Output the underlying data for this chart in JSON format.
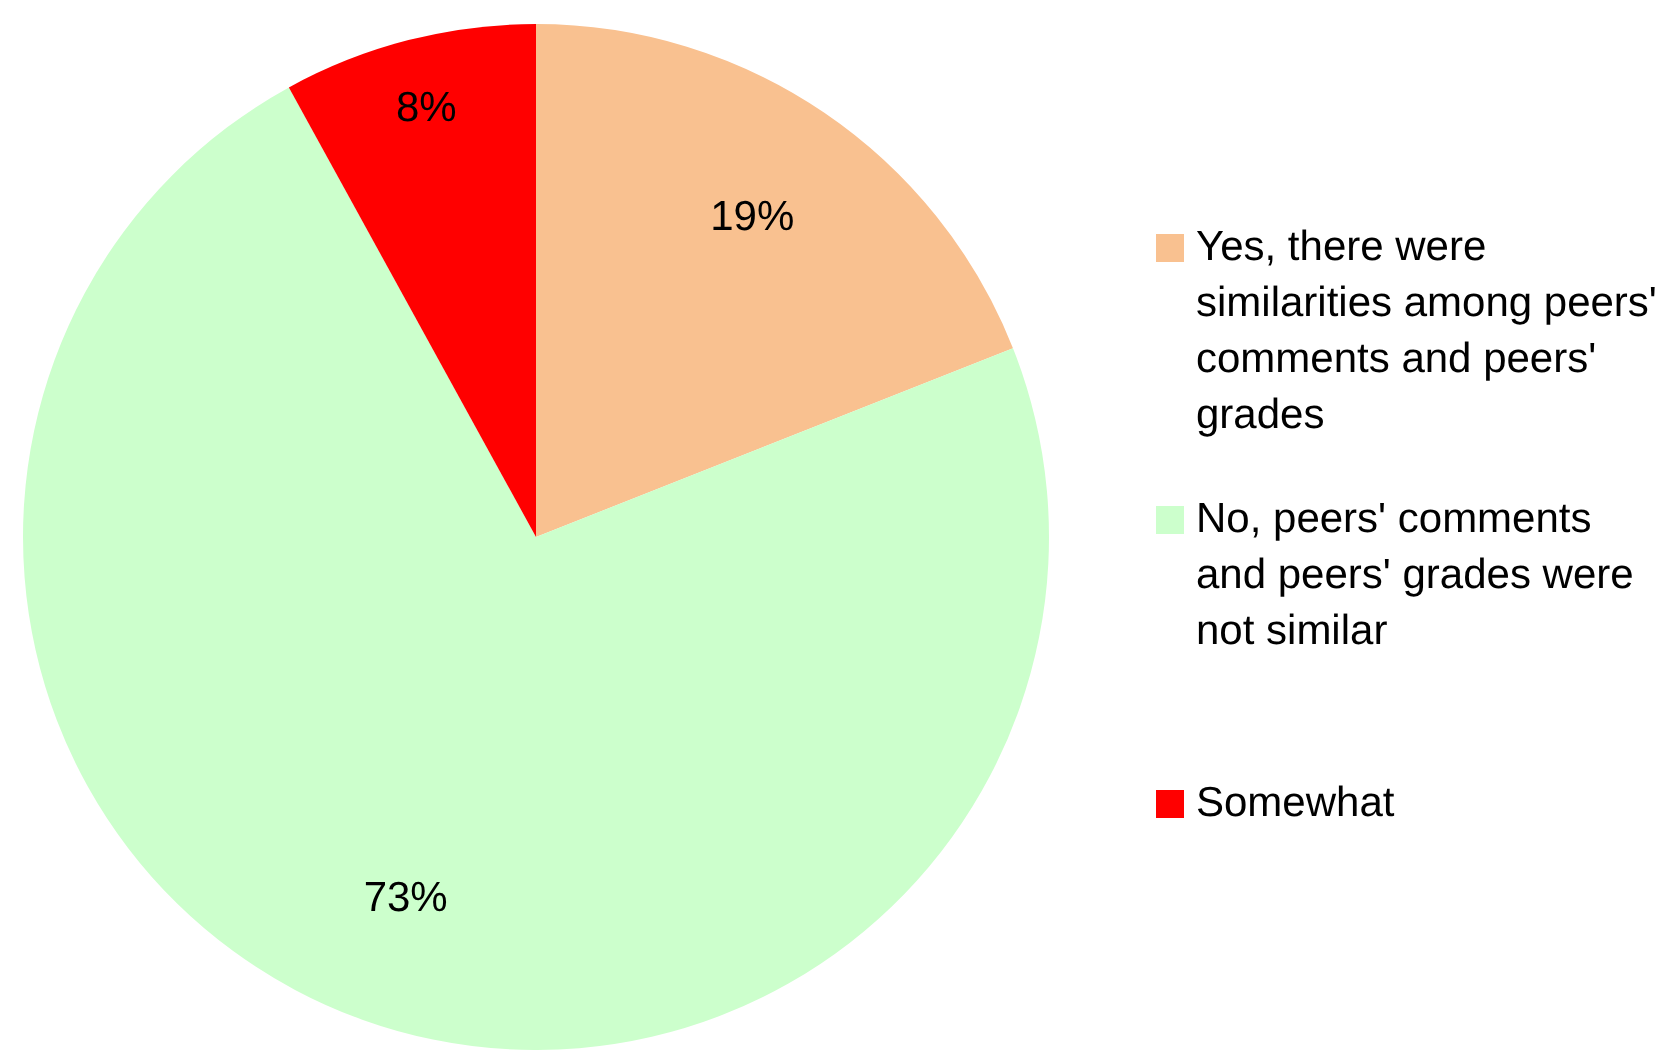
{
  "chart_data": {
    "type": "pie",
    "categories": [
      "Yes, there were similarities among peers' comments and peers' grades",
      "No, peers' comments and peers' grades were not similar",
      "Somewhat"
    ],
    "values": [
      19,
      73,
      8
    ],
    "value_labels": [
      "19%",
      "73%",
      "8%"
    ],
    "colors": [
      "#f9c190",
      "#ccffcc",
      "#ff0000"
    ],
    "legend": "right"
  }
}
